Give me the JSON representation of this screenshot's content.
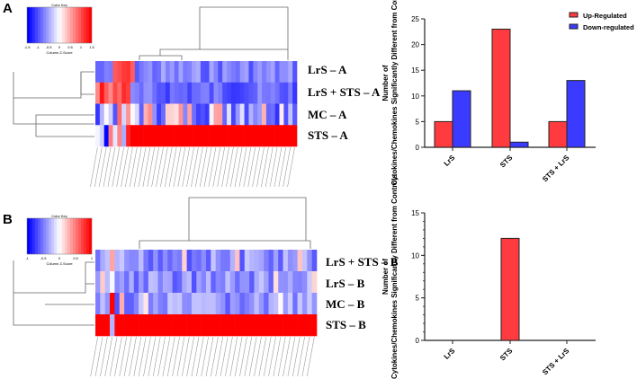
{
  "panels": [
    {
      "label": "A",
      "heatmap": {
        "color_key_title": "Color Key",
        "color_key_xlabel": "Column Z-Score",
        "color_key_ticks": [
          "-1.5",
          "-1",
          "-0.5",
          "0",
          "0.5",
          "1",
          "1.5"
        ],
        "rows": [
          "LrS – A",
          "LrS + STS  – A",
          "MC – A",
          "STS  – A"
        ]
      }
    },
    {
      "label": "B",
      "heatmap": {
        "color_key_title": "Color Key",
        "color_key_xlabel": "Column Z-Score",
        "color_key_ticks": [
          "-1",
          "-0.5",
          "0",
          "0.5",
          "1"
        ],
        "rows": [
          "LrS + STS  – B",
          "LrS – B",
          "MC – B",
          "STS  – B"
        ]
      }
    }
  ],
  "colors": {
    "up": "#ff3b3f",
    "down": "#3b3bff",
    "heat_low": "#0000ff",
    "heat_high": "#ff0000"
  },
  "chart_data": [
    {
      "type": "bar",
      "categories": [
        "LrS",
        "STS",
        "STS + LrS"
      ],
      "series": [
        {
          "name": "Up-Regulated",
          "values": [
            5,
            23,
            5
          ]
        },
        {
          "name": "Down-regulated",
          "values": [
            11,
            1,
            13
          ]
        }
      ],
      "ylabel": "Number of Cytokines/Chemokines Significantly Different from Controls",
      "ylim": [
        0,
        25
      ],
      "yticks": [
        "0",
        "5",
        "10",
        "15",
        "20",
        "25"
      ],
      "legend": "top-right"
    },
    {
      "type": "bar",
      "categories": [
        "LrS",
        "STS",
        "STS + LrS"
      ],
      "series": [
        {
          "name": "Up-Regulated",
          "values": [
            0,
            12,
            0
          ]
        }
      ],
      "ylabel": "Number of Cytokines/Chemokines Significantly Different from Controls",
      "ylim": [
        0,
        15
      ],
      "yticks": [
        "0",
        "5",
        "10",
        "15"
      ],
      "legend": "none"
    }
  ]
}
